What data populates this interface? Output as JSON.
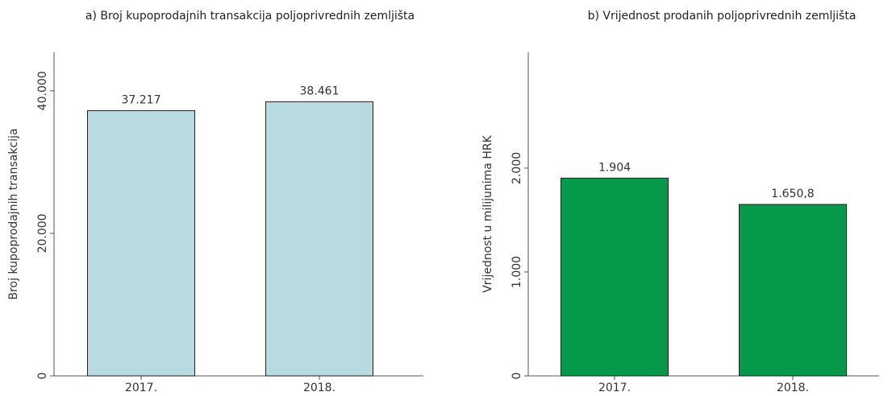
{
  "chart_data": [
    {
      "type": "bar",
      "title": "a) Broj kupoprodajnih transakcija poljoprivrednih zemljišta",
      "ylabel": "Broj kupoprodajnih transakcija",
      "categories": [
        "2017.",
        "2018."
      ],
      "values": [
        37217,
        38461
      ],
      "value_labels": [
        "37.217",
        "38.461"
      ],
      "color": "#b7dbe1",
      "ylim": [
        0,
        45400
      ],
      "yticks": [
        0,
        {
          "value": 20000,
          "label": "20.000"
        },
        {
          "value": 40000,
          "label": "40.000"
        }
      ]
    },
    {
      "type": "bar",
      "title": "b) Vrijednost prodanih poljoprivrednih zemljišta",
      "ylabel": "Vrijednost u milijunima HRK",
      "categories": [
        "2017.",
        "2018."
      ],
      "values": [
        1904,
        1650.8
      ],
      "value_labels": [
        "1.904",
        "1.650,8"
      ],
      "color": "#06994b",
      "ylim": [
        0,
        3115
      ],
      "yticks": [
        0,
        {
          "value": 1000,
          "label": "1.000"
        },
        {
          "value": 2000,
          "label": "2.000"
        }
      ]
    }
  ]
}
